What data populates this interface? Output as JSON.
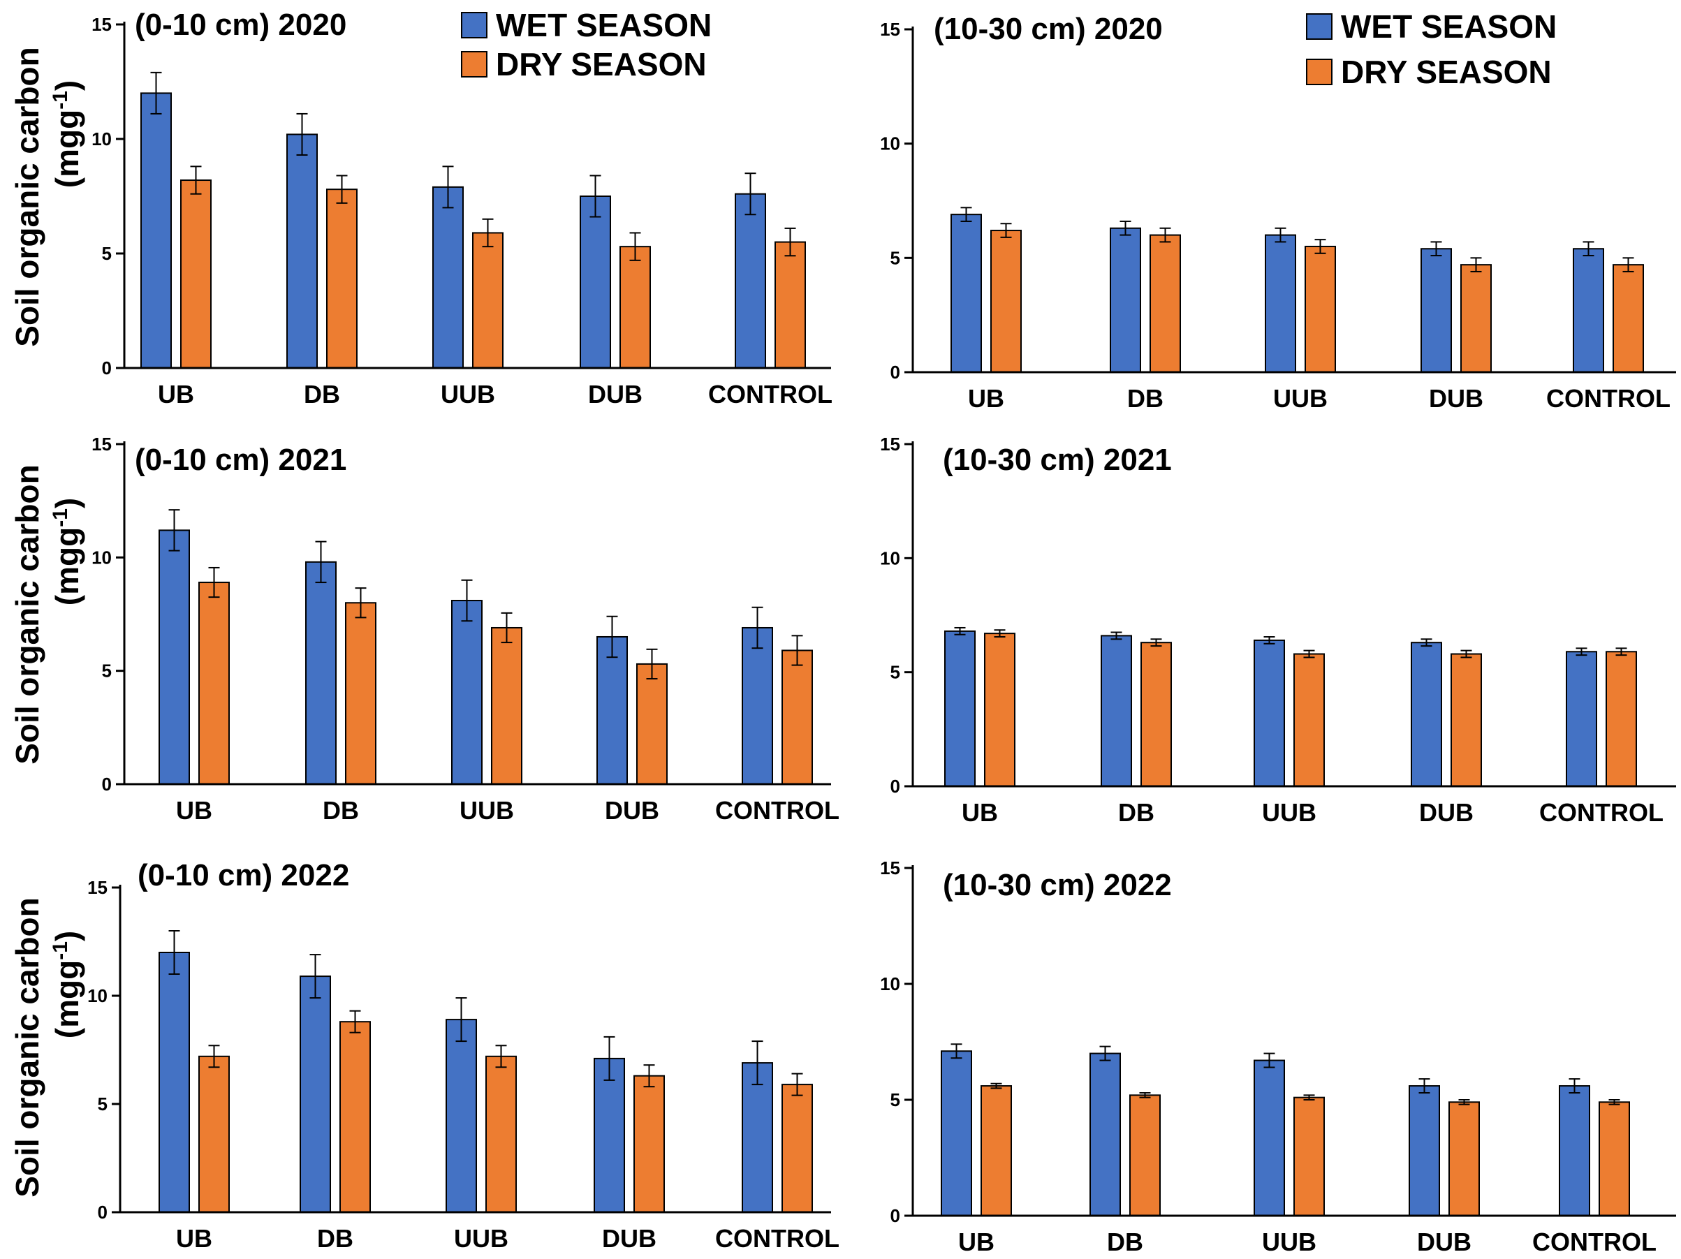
{
  "chart_data": [
    {
      "type": "bar",
      "title": "(0-10 cm) 2020",
      "categories": [
        "UB",
        "DB",
        "UUB",
        "DUB",
        "CONTROL"
      ],
      "series": [
        {
          "name": "WET SEASON",
          "color": "#4472c4",
          "values": [
            12.0,
            10.2,
            7.9,
            7.5,
            7.6
          ],
          "errors": [
            0.9,
            0.9,
            0.9,
            0.9,
            0.9
          ]
        },
        {
          "name": "DRY SEASON",
          "color": "#ed7d31",
          "values": [
            8.2,
            7.8,
            5.9,
            5.3,
            5.5
          ],
          "errors": [
            0.6,
            0.6,
            0.6,
            0.6,
            0.6
          ]
        }
      ],
      "ylim": [
        0,
        15
      ],
      "yticks": [
        "0",
        "5",
        "10",
        "15"
      ],
      "ylabel": "Soil organic carbon",
      "ylabel_unit": "(mgg",
      "ylabel_sup": "-1",
      "ylabel_close": ")",
      "legend": [
        "WET SEASON",
        "DRY SEASON"
      ]
    },
    {
      "type": "bar",
      "title": "(10-30 cm) 2020",
      "categories": [
        "UB",
        "DB",
        "UUB",
        "DUB",
        "CONTROL"
      ],
      "series": [
        {
          "name": "WET SEASON",
          "color": "#4472c4",
          "values": [
            6.9,
            6.3,
            6.0,
            5.4,
            5.4
          ],
          "errors": [
            0.3,
            0.3,
            0.3,
            0.3,
            0.3
          ]
        },
        {
          "name": "DRY SEASON",
          "color": "#ed7d31",
          "values": [
            6.2,
            6.0,
            5.5,
            4.7,
            4.7
          ],
          "errors": [
            0.3,
            0.3,
            0.3,
            0.3,
            0.3
          ]
        }
      ],
      "ylim": [
        0,
        15
      ],
      "yticks": [
        "0",
        "5",
        "10",
        "15"
      ],
      "legend": [
        "WET SEASON",
        "DRY SEASON"
      ]
    },
    {
      "type": "bar",
      "title": "(0-10 cm) 2021",
      "categories": [
        "UB",
        "DB",
        "UUB",
        "DUB",
        "CONTROL"
      ],
      "series": [
        {
          "name": "WET SEASON",
          "color": "#4472c4",
          "values": [
            11.2,
            9.8,
            8.1,
            6.5,
            6.9
          ],
          "errors": [
            0.9,
            0.9,
            0.9,
            0.9,
            0.9
          ]
        },
        {
          "name": "DRY SEASON",
          "color": "#ed7d31",
          "values": [
            8.9,
            8.0,
            6.9,
            5.3,
            5.9
          ],
          "errors": [
            0.65,
            0.65,
            0.65,
            0.65,
            0.65
          ]
        }
      ],
      "ylim": [
        0,
        15
      ],
      "yticks": [
        "0",
        "5",
        "10",
        "15"
      ],
      "ylabel": "Soil organic carbon",
      "ylabel_unit": "(mgg",
      "ylabel_sup": "-1",
      "ylabel_close": ")"
    },
    {
      "type": "bar",
      "title": "(10-30 cm) 2021",
      "categories": [
        "UB",
        "DB",
        "UUB",
        "DUB",
        "CONTROL"
      ],
      "series": [
        {
          "name": "WET SEASON",
          "color": "#4472c4",
          "values": [
            6.8,
            6.6,
            6.4,
            6.3,
            5.9
          ],
          "errors": [
            0.15,
            0.15,
            0.15,
            0.15,
            0.15
          ]
        },
        {
          "name": "DRY SEASON",
          "color": "#ed7d31",
          "values": [
            6.7,
            6.3,
            5.8,
            5.8,
            5.9
          ],
          "errors": [
            0.15,
            0.15,
            0.15,
            0.15,
            0.15
          ]
        }
      ],
      "ylim": [
        0,
        15
      ],
      "yticks": [
        "0",
        "5",
        "10",
        "15"
      ]
    },
    {
      "type": "bar",
      "title": "(0-10 cm) 2022",
      "categories": [
        "UB",
        "DB",
        "UUB",
        "DUB",
        "CONTROL"
      ],
      "series": [
        {
          "name": "WET SEASON",
          "color": "#4472c4",
          "values": [
            12.0,
            10.9,
            8.9,
            7.1,
            6.9
          ],
          "errors": [
            1.0,
            1.0,
            1.0,
            1.0,
            1.0
          ]
        },
        {
          "name": "DRY SEASON",
          "color": "#ed7d31",
          "values": [
            7.2,
            8.8,
            7.2,
            6.3,
            5.9
          ],
          "errors": [
            0.5,
            0.5,
            0.5,
            0.5,
            0.5
          ]
        }
      ],
      "ylim": [
        0,
        15
      ],
      "yticks": [
        "0",
        "5",
        "10",
        "15"
      ],
      "ylabel": "Soil organic carbon",
      "ylabel_unit": "(mgg",
      "ylabel_sup": "-1",
      "ylabel_close": ")"
    },
    {
      "type": "bar",
      "title": "(10-30 cm) 2022",
      "categories": [
        "UB",
        "DB",
        "UUB",
        "DUB",
        "CONTROL"
      ],
      "series": [
        {
          "name": "WET SEASON",
          "color": "#4472c4",
          "values": [
            7.1,
            7.0,
            6.7,
            5.6,
            5.6
          ],
          "errors": [
            0.3,
            0.3,
            0.3,
            0.3,
            0.3
          ]
        },
        {
          "name": "DRY SEASON",
          "color": "#ed7d31",
          "values": [
            5.6,
            5.2,
            5.1,
            4.9,
            4.9
          ],
          "errors": [
            0.1,
            0.1,
            0.1,
            0.1,
            0.1
          ]
        }
      ],
      "ylim": [
        0,
        15
      ],
      "yticks": [
        "0",
        "5",
        "10",
        "15"
      ]
    }
  ]
}
